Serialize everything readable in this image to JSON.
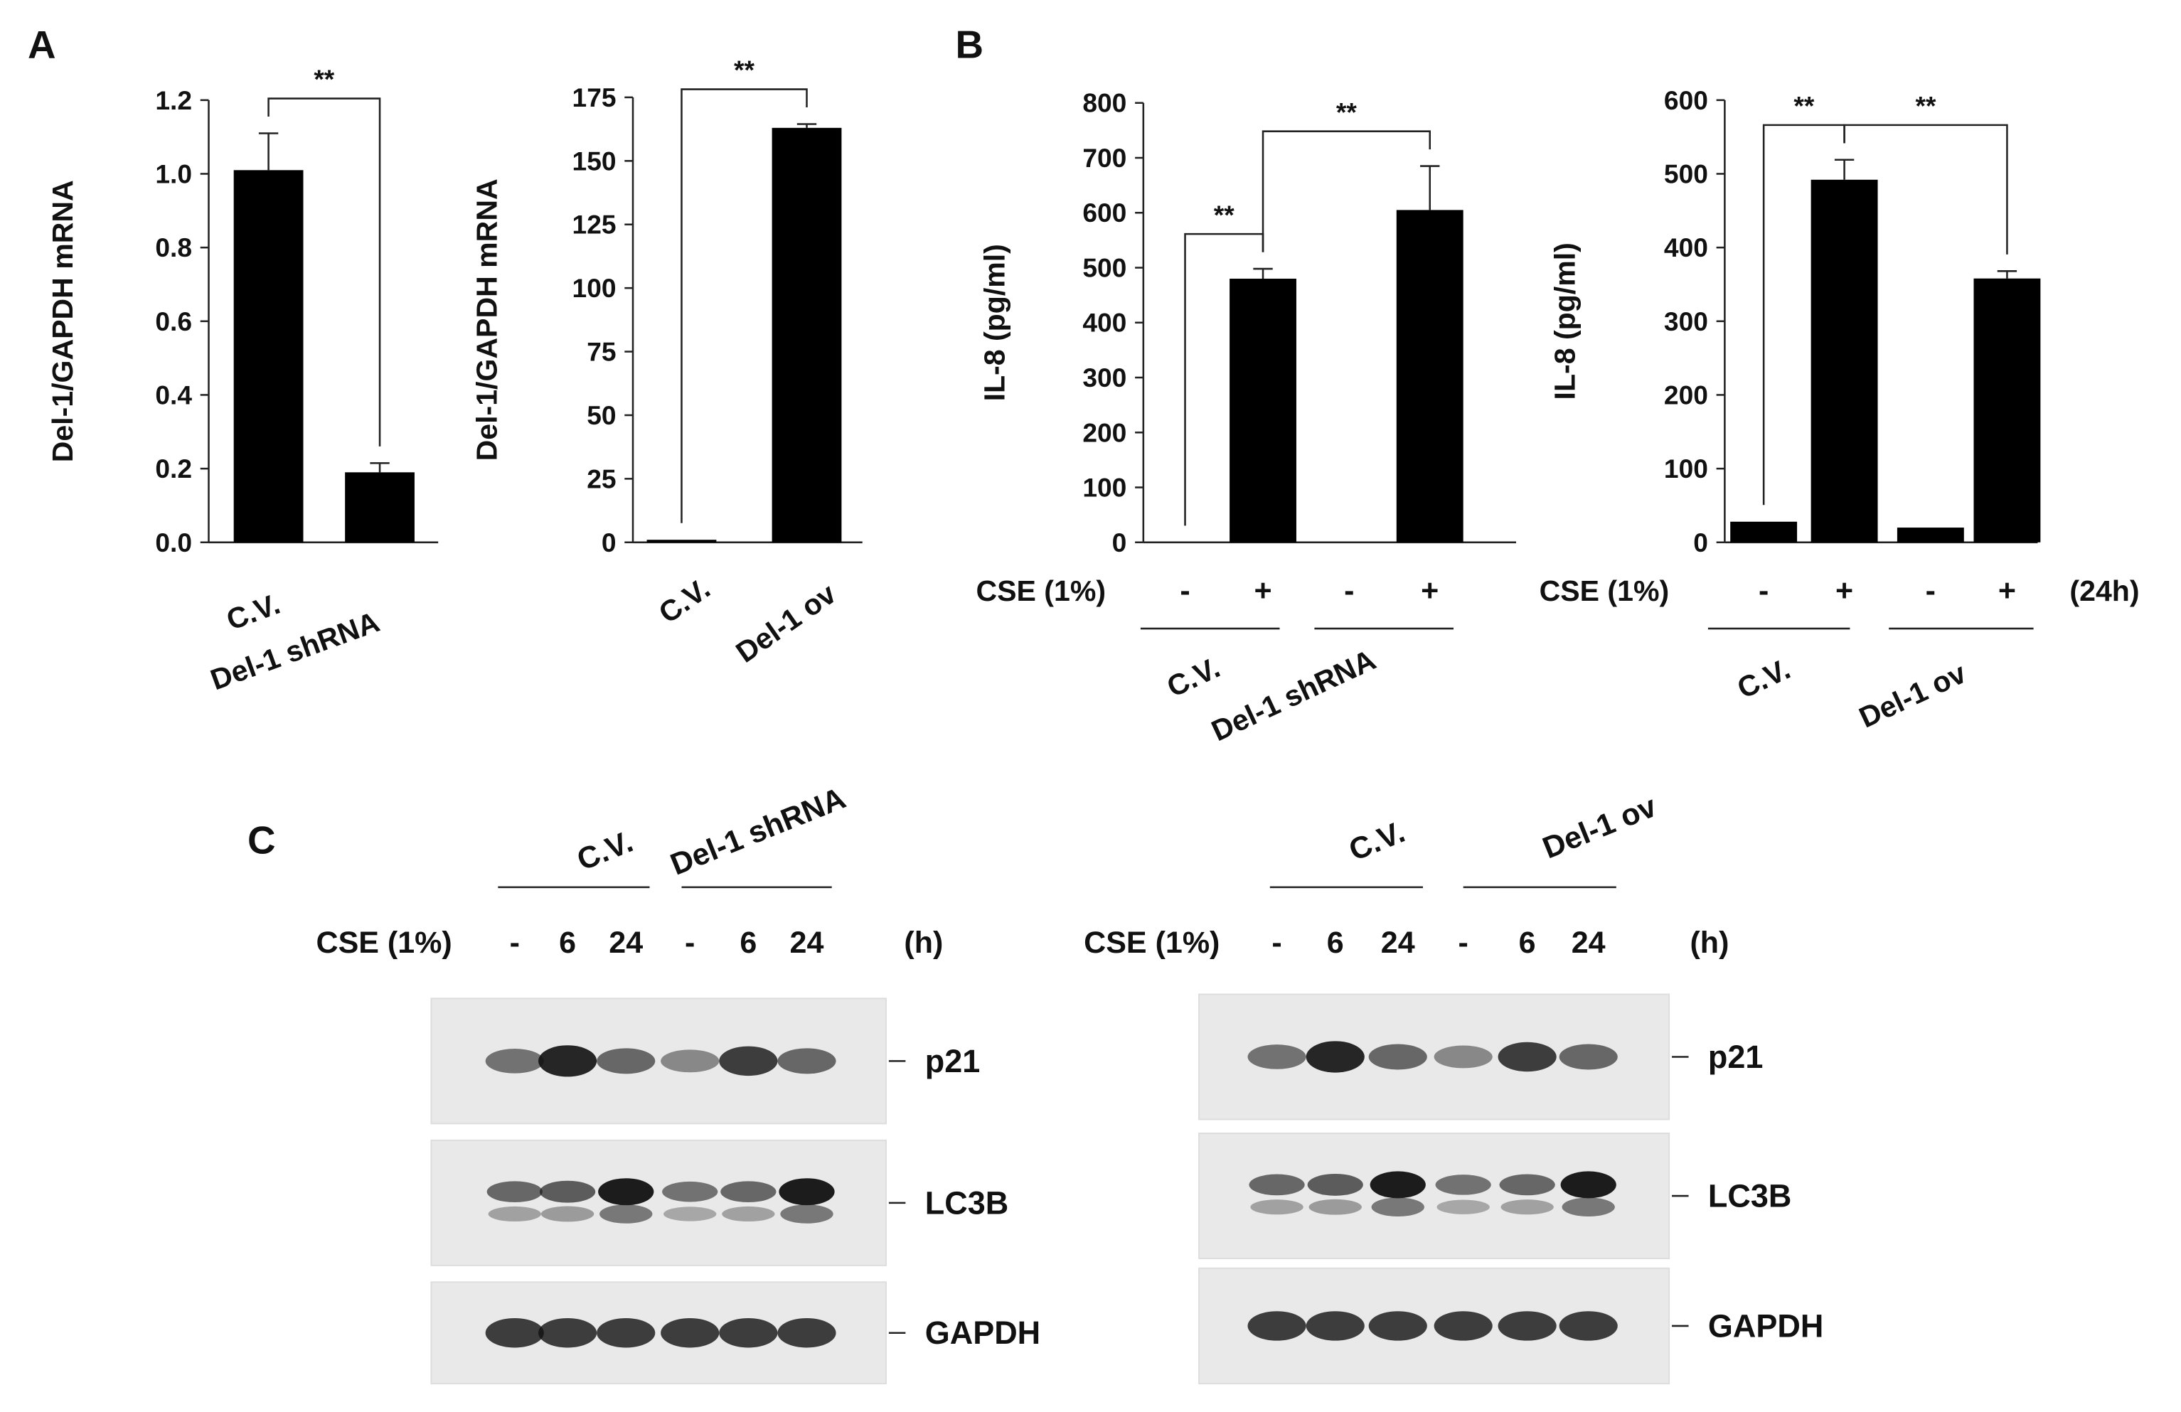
{
  "panel_labels": [
    "A",
    "B",
    "C"
  ],
  "chart_data": [
    {
      "type": "bar",
      "y_label": "Del-1/GAPDH mRNA",
      "categories": [
        "C.V.",
        "Del-1 shRNA"
      ],
      "values": [
        1.01,
        0.19
      ],
      "errors": [
        0.1,
        0.025
      ],
      "color": "#000000",
      "ylim": [
        0,
        1.2
      ],
      "yticks": [
        {
          "value": 0,
          "label": "0.0"
        },
        0.2,
        0.4,
        0.6,
        0.8,
        {
          "value": 1,
          "label": "1.0"
        },
        1.2
      ],
      "annotations": [
        {
          "text": "**",
          "bars": [
            0,
            1
          ]
        }
      ]
    },
    {
      "type": "bar",
      "y_label": "Del-1/GAPDH mRNA",
      "categories": [
        "C.V.",
        "Del-1 ov"
      ],
      "values": [
        1,
        163
      ],
      "errors": [
        0,
        1.5
      ],
      "color": "#000000",
      "ylim": [
        0,
        175
      ],
      "yticks": [
        0,
        25,
        50,
        75,
        100,
        125,
        150,
        175
      ],
      "annotations": [
        {
          "text": "**",
          "bars": [
            0,
            1
          ]
        }
      ]
    },
    {
      "type": "bar",
      "y_label": "IL-8 (pg/ml)",
      "row_label": "CSE (1%)",
      "categories": [
        "-",
        "+",
        "-",
        "+"
      ],
      "groups": [
        "C.V.",
        "Del-1 shRNA"
      ],
      "values": [
        0,
        480,
        0,
        605
      ],
      "errors": [
        0,
        18,
        0,
        80
      ],
      "color": "#000000",
      "ylim": [
        0,
        800
      ],
      "yticks": [
        0,
        100,
        200,
        300,
        400,
        500,
        600,
        700,
        800
      ],
      "annotations": [
        {
          "text": "**",
          "bars": [
            0,
            1
          ]
        },
        {
          "text": "**",
          "bars": [
            1,
            3
          ]
        }
      ]
    },
    {
      "type": "bar",
      "y_label": "IL-8 (pg/ml)",
      "row_label": "CSE (1%)",
      "note": "(24h)",
      "categories": [
        "-",
        "+",
        "-",
        "+"
      ],
      "groups": [
        "C.V.",
        "Del-1 ov"
      ],
      "values": [
        28,
        492,
        20,
        358
      ],
      "errors": [
        0,
        27,
        0,
        10
      ],
      "color": "#000000",
      "ylim": [
        0,
        600
      ],
      "yticks": [
        0,
        100,
        200,
        300,
        400,
        500,
        600
      ],
      "annotations": [
        {
          "text": "**",
          "bars": [
            0,
            1
          ]
        },
        {
          "text": "**",
          "bars": [
            1,
            3
          ]
        }
      ]
    }
  ],
  "blots": [
    {
      "groups": [
        "C.V.",
        "Del-1 shRNA"
      ],
      "row_label": "CSE (1%)",
      "lanes": [
        "-",
        "6",
        "24",
        "-",
        "6",
        "24"
      ],
      "unit": "(h)",
      "bands": [
        "p21",
        "LC3B",
        "GAPDH"
      ]
    },
    {
      "groups": [
        "C.V.",
        "Del-1 ov"
      ],
      "row_label": "CSE (1%)",
      "lanes": [
        "-",
        "6",
        "24",
        "-",
        "6",
        "24"
      ],
      "unit": "(h)",
      "bands": [
        "p21",
        "LC3B",
        "GAPDH"
      ]
    }
  ]
}
